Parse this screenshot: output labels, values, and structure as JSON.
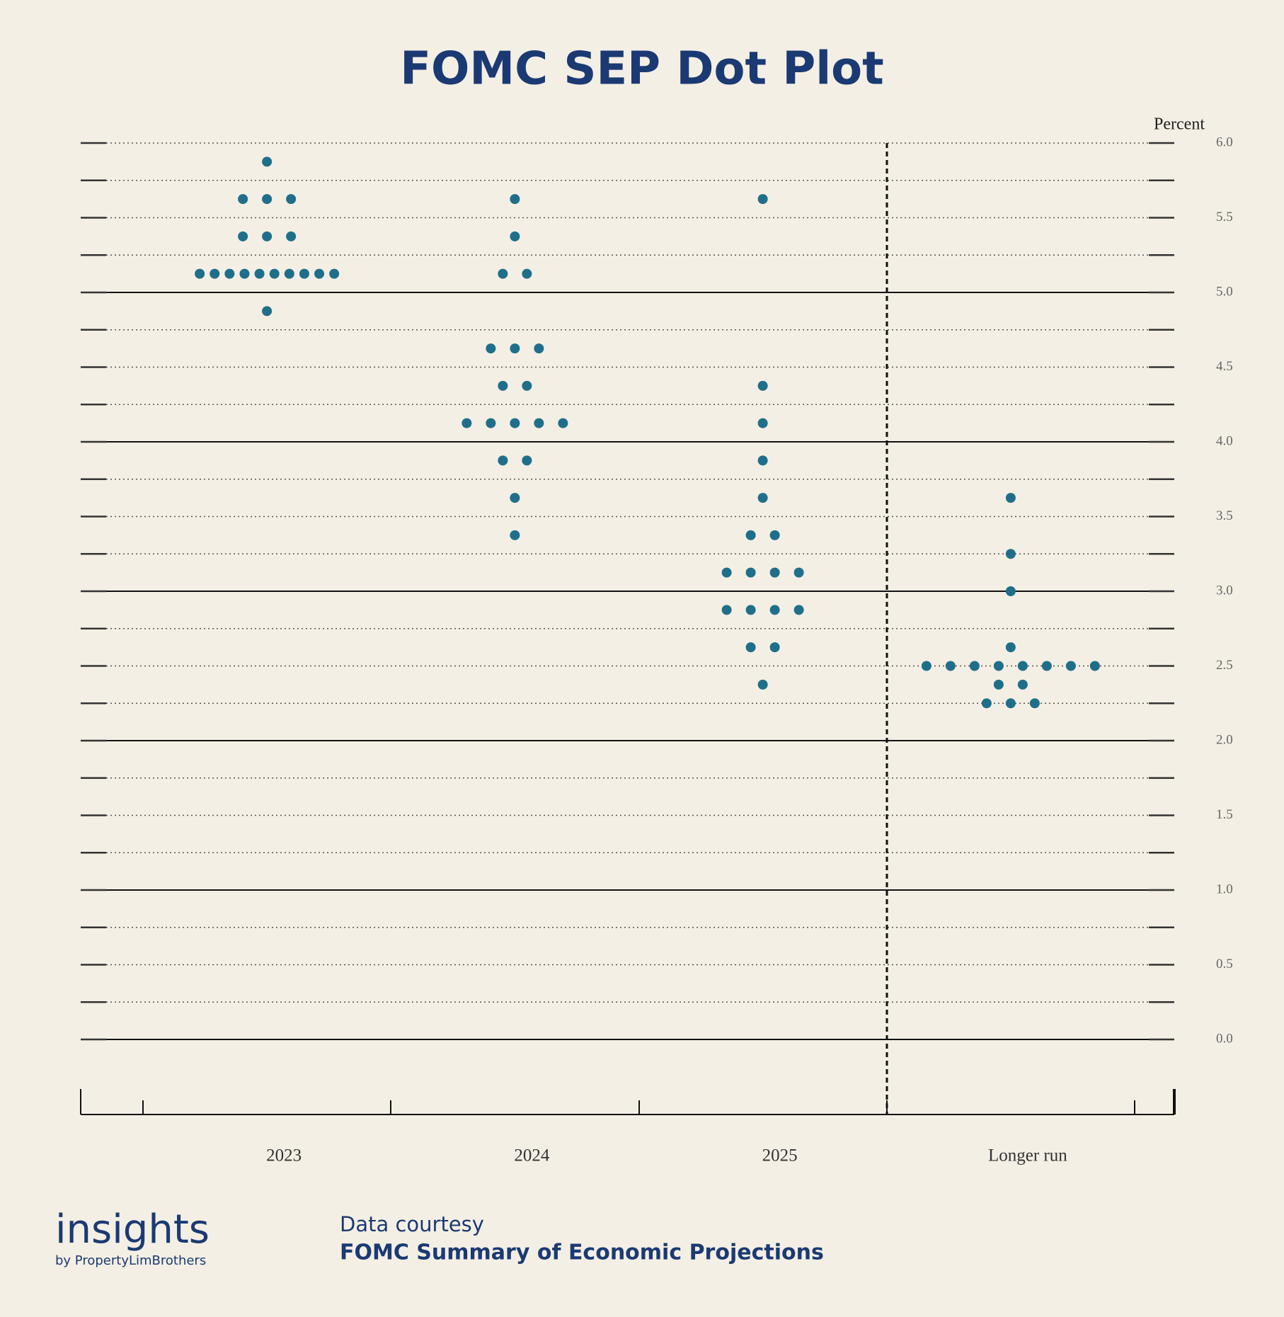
{
  "chart_data": {
    "type": "dot",
    "title": "FOMC SEP Dot Plot",
    "y_label": "Percent",
    "categories": [
      "2023",
      "2024",
      "2025",
      "Longer run"
    ],
    "values": [
      [
        5.875,
        5.625,
        5.625,
        5.625,
        5.375,
        5.375,
        5.375,
        5.125,
        5.125,
        5.125,
        5.125,
        5.125,
        5.125,
        5.125,
        5.125,
        5.125,
        5.125,
        4.875
      ],
      [
        5.625,
        5.375,
        5.125,
        5.125,
        4.625,
        4.625,
        4.625,
        4.375,
        4.375,
        4.125,
        4.125,
        4.125,
        4.125,
        4.125,
        3.875,
        3.875,
        3.625,
        3.375
      ],
      [
        5.625,
        4.375,
        4.125,
        3.875,
        3.625,
        3.375,
        3.375,
        3.125,
        3.125,
        3.125,
        3.125,
        2.875,
        2.875,
        2.875,
        2.875,
        2.625,
        2.625,
        2.375
      ],
      [
        3.625,
        3.25,
        3.0,
        2.625,
        2.5,
        2.5,
        2.5,
        2.5,
        2.5,
        2.5,
        2.5,
        2.5,
        2.375,
        2.375,
        2.25,
        2.25,
        2.25
      ]
    ],
    "color": "#1f6f8b",
    "ylim": [
      0,
      6
    ],
    "yticks": [
      {
        "value": 0,
        "label": "0.0"
      },
      {
        "value": 0.5,
        "label": "0.5"
      },
      {
        "value": 1,
        "label": "1.0"
      },
      {
        "value": 1.5,
        "label": "1.5"
      },
      {
        "value": 2,
        "label": "2.0"
      },
      {
        "value": 2.5,
        "label": "2.5"
      },
      {
        "value": 3,
        "label": "3.0"
      },
      {
        "value": 3.5,
        "label": "3.5"
      },
      {
        "value": 4,
        "label": "4.0"
      },
      {
        "value": 4.5,
        "label": "4.5"
      },
      {
        "value": 5,
        "label": "5.0"
      },
      {
        "value": 5.5,
        "label": "5.5"
      },
      {
        "value": 6,
        "label": "6.0"
      }
    ],
    "grid": true
  },
  "footer": {
    "logo": "insights",
    "logo_sub": "by PropertyLimBrothers",
    "source_label": "Data courtesy",
    "source": "FOMC Summary of Economic Projections"
  }
}
